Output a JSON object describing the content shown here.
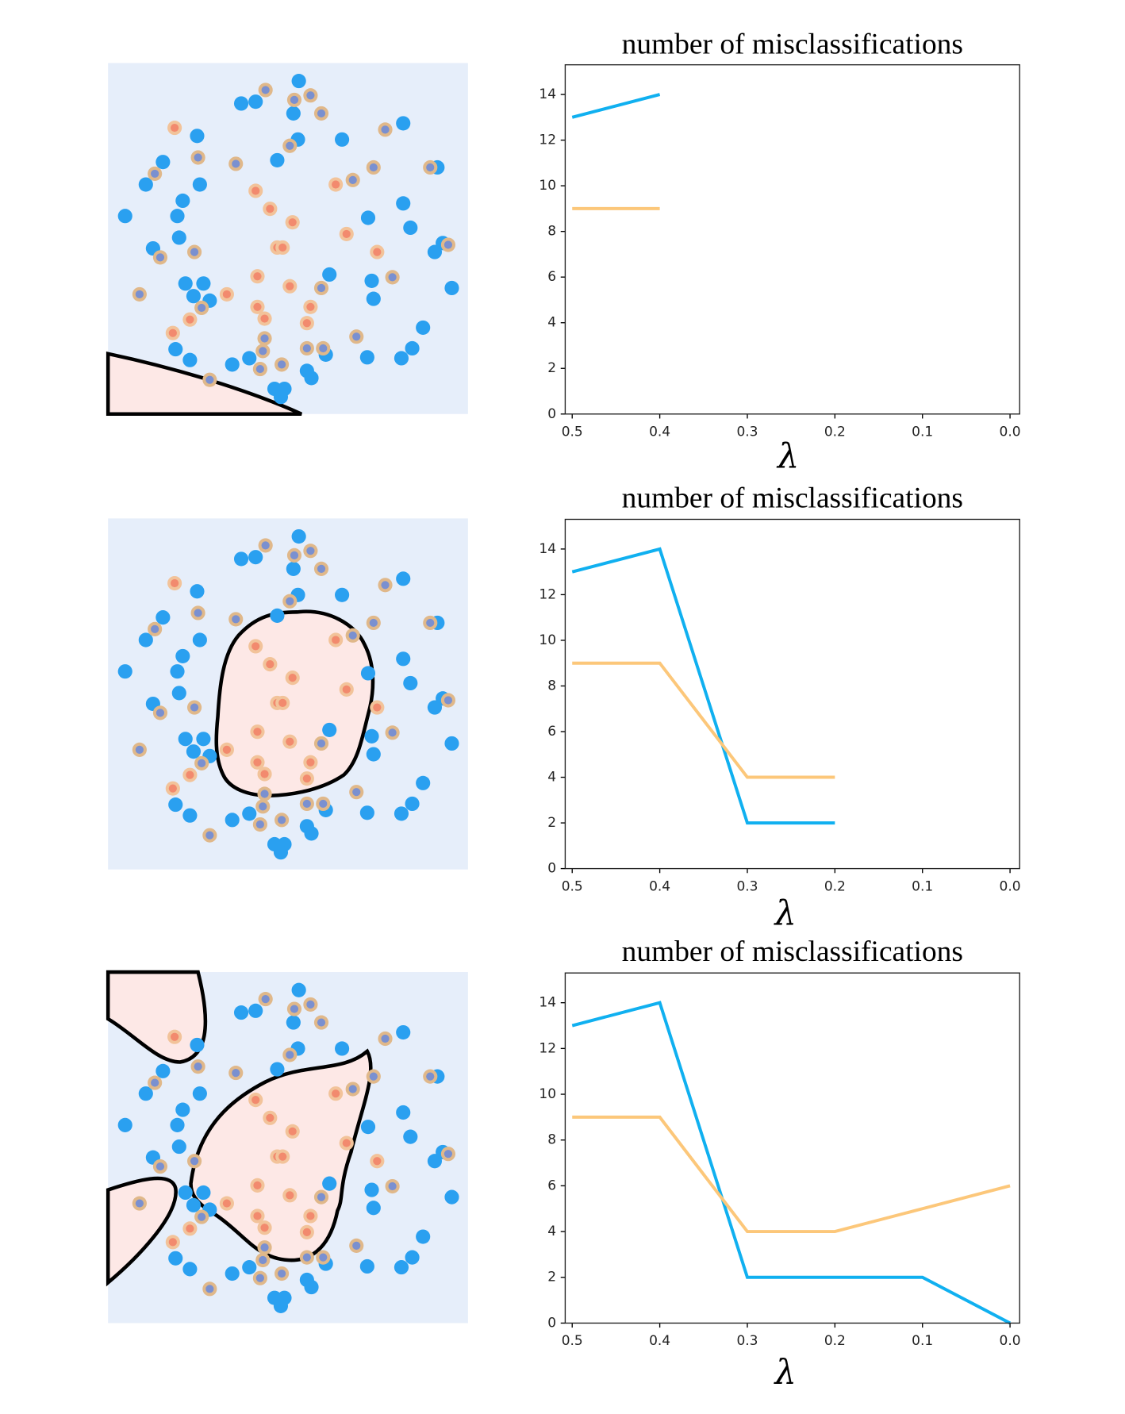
{
  "chart_data": [
    {
      "type": "line",
      "title": "number of misclassifications",
      "x_label": "λ",
      "x": [
        0.5,
        0.4
      ],
      "xlim": [
        0.508,
        -0.011
      ],
      "xticks": [
        0.5,
        0.4,
        0.3,
        0.2,
        0.1,
        {
          "value": 0,
          "label": "0.0"
        }
      ],
      "ylim": [
        0,
        15.3
      ],
      "yticks": [
        0,
        2,
        4,
        6,
        8,
        10,
        12,
        14
      ],
      "series": [
        {
          "color": "#10b0f0",
          "values": [
            13,
            14
          ]
        },
        {
          "color": "#fcc77a",
          "values": [
            9,
            9
          ]
        }
      ]
    },
    {
      "type": "line",
      "title": "number of misclassifications",
      "x_label": "λ",
      "x": [
        0.5,
        0.4,
        0.3,
        0.2
      ],
      "xlim": [
        0.508,
        -0.011
      ],
      "xticks": [
        0.5,
        0.4,
        0.3,
        0.2,
        0.1,
        {
          "value": 0,
          "label": "0.0"
        }
      ],
      "ylim": [
        0,
        15.3
      ],
      "yticks": [
        0,
        2,
        4,
        6,
        8,
        10,
        12,
        14
      ],
      "series": [
        {
          "color": "#10b0f0",
          "values": [
            13,
            14,
            2,
            2
          ]
        },
        {
          "color": "#fcc77a",
          "values": [
            9,
            9,
            4,
            4
          ]
        }
      ]
    },
    {
      "type": "line",
      "title": "number of misclassifications",
      "x_label": "λ",
      "x": [
        0.5,
        0.4,
        0.3,
        0.2,
        0.1,
        0.0
      ],
      "xlim": [
        0.508,
        -0.011
      ],
      "xticks": [
        0.5,
        0.4,
        0.3,
        0.2,
        0.1,
        {
          "value": 0,
          "label": "0.0"
        }
      ],
      "ylim": [
        0,
        15.3
      ],
      "yticks": [
        0,
        2,
        4,
        6,
        8,
        10,
        12,
        14
      ],
      "series": [
        {
          "color": "#10b0f0",
          "values": [
            13,
            14,
            2,
            2,
            2,
            0
          ]
        },
        {
          "color": "#fcc77a",
          "values": [
            9,
            9,
            4,
            4,
            5,
            6
          ]
        }
      ]
    }
  ]
}
